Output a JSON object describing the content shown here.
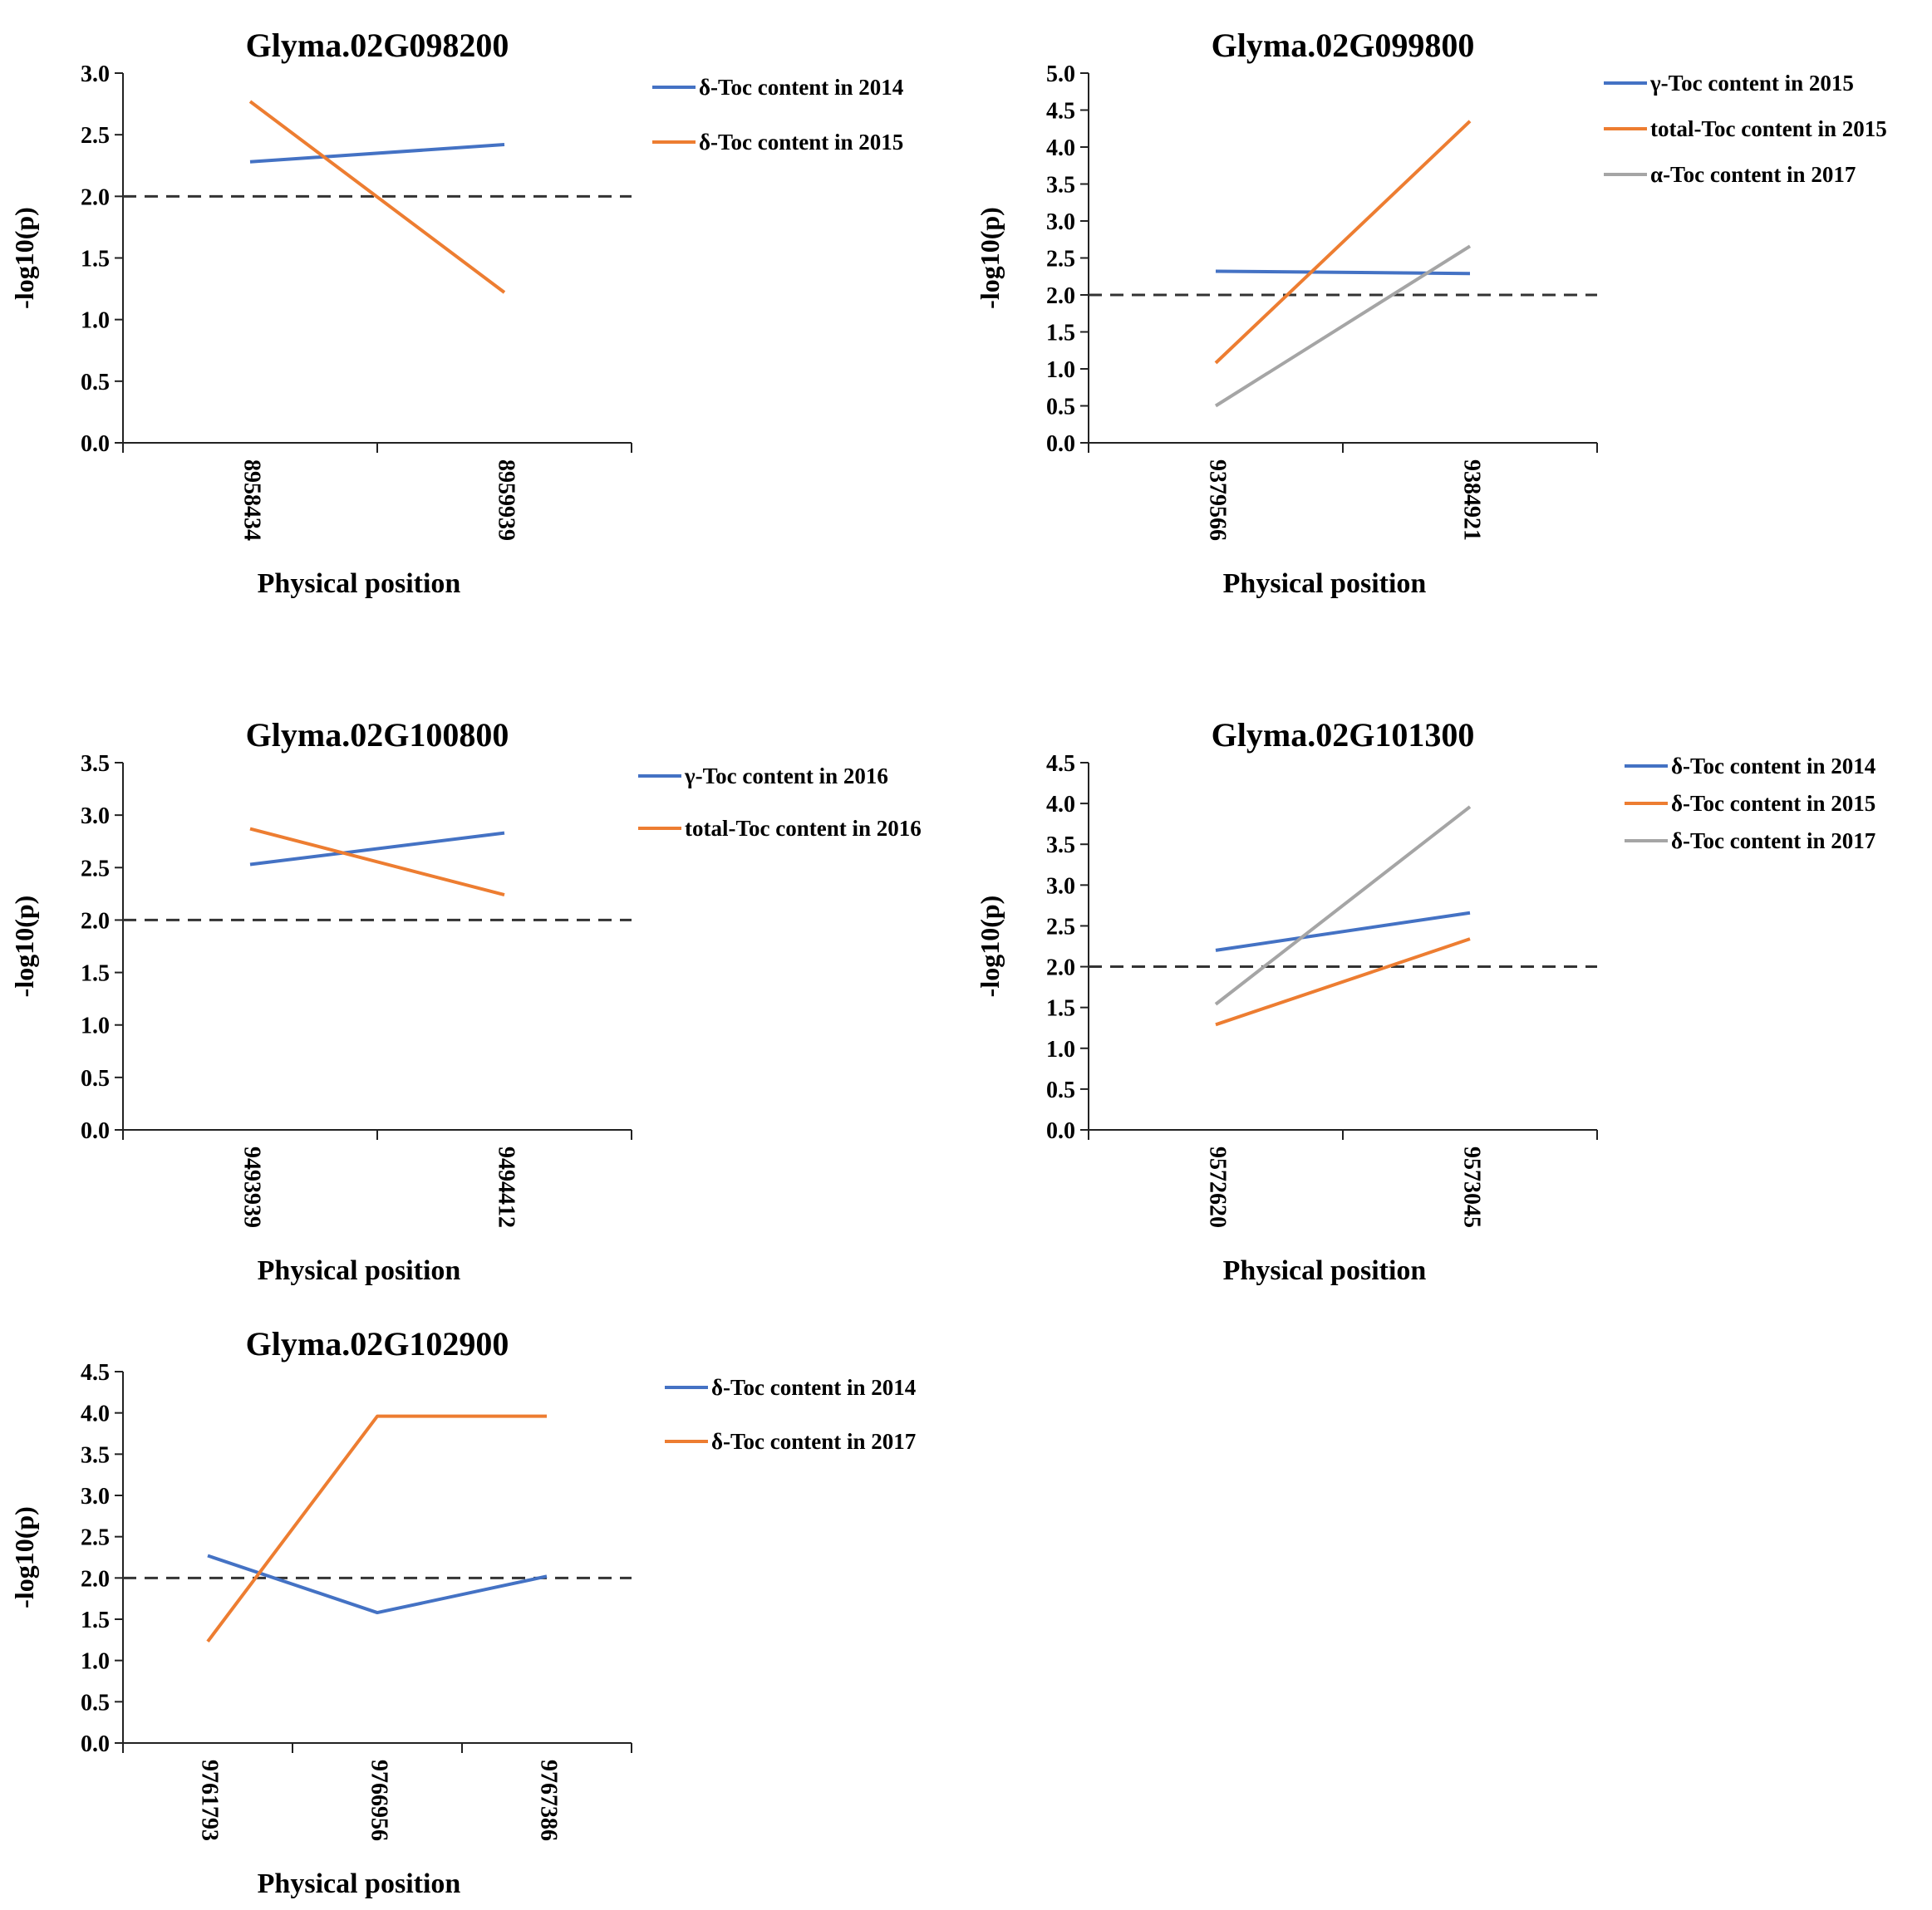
{
  "colors": {
    "blue": "#4472c4",
    "orange": "#ed7d31",
    "gray": "#a5a5a5",
    "threshold": "#333333"
  },
  "chart_data": [
    {
      "type": "line",
      "title": "Glyma.02G098200",
      "xlabel": "Physical position",
      "ylabel": "-log10(p)",
      "categories": [
        "8958434",
        "8959939"
      ],
      "ylim": [
        0,
        3.0
      ],
      "yticks": [
        "0.0",
        "0.5",
        "1.0",
        "1.5",
        "2.0",
        "2.5",
        "3.0"
      ],
      "threshold": 2.0,
      "series": [
        {
          "name": "δ-Toc content in 2014",
          "color": "blue",
          "values": [
            2.28,
            2.42
          ]
        },
        {
          "name": "δ-Toc content in 2015",
          "color": "orange",
          "values": [
            2.77,
            1.22
          ]
        }
      ]
    },
    {
      "type": "line",
      "title": "Glyma.02G099800",
      "xlabel": "Physical position",
      "ylabel": "-log10(p)",
      "categories": [
        "9379566",
        "9384921"
      ],
      "ylim": [
        0,
        5.0
      ],
      "yticks": [
        "0.0",
        "0.5",
        "1.0",
        "1.5",
        "2.0",
        "2.5",
        "3.0",
        "3.5",
        "4.0",
        "4.5",
        "5.0"
      ],
      "threshold": 2.0,
      "series": [
        {
          "name": "γ-Toc content in 2015",
          "color": "blue",
          "values": [
            2.32,
            2.29
          ]
        },
        {
          "name": "total-Toc content in 2015",
          "color": "orange",
          "values": [
            1.08,
            4.35
          ]
        },
        {
          "name": "α-Toc content in 2017",
          "color": "gray",
          "values": [
            0.5,
            2.66
          ]
        }
      ]
    },
    {
      "type": "line",
      "title": "Glyma.02G100800",
      "xlabel": "Physical position",
      "ylabel": "-log10(p)",
      "categories": [
        "9493939",
        "9494412"
      ],
      "ylim": [
        0,
        3.5
      ],
      "yticks": [
        "0.0",
        "0.5",
        "1.0",
        "1.5",
        "2.0",
        "2.5",
        "3.0",
        "3.5"
      ],
      "threshold": 2.0,
      "series": [
        {
          "name": "γ-Toc content in 2016",
          "color": "blue",
          "values": [
            2.53,
            2.83
          ]
        },
        {
          "name": "total-Toc content in 2016",
          "color": "orange",
          "values": [
            2.87,
            2.24
          ]
        }
      ]
    },
    {
      "type": "line",
      "title": "Glyma.02G101300",
      "xlabel": "Physical position",
      "ylabel": "-log10(p)",
      "categories": [
        "9572620",
        "9573045"
      ],
      "ylim": [
        0,
        4.5
      ],
      "yticks": [
        "0.0",
        "0.5",
        "1.0",
        "1.5",
        "2.0",
        "2.5",
        "3.0",
        "3.5",
        "4.0",
        "4.5"
      ],
      "threshold": 2.0,
      "series": [
        {
          "name": "δ-Toc content in 2014",
          "color": "blue",
          "values": [
            2.2,
            2.66
          ]
        },
        {
          "name": "δ-Toc content in 2015",
          "color": "orange",
          "values": [
            1.29,
            2.34
          ]
        },
        {
          "name": "δ-Toc content in 2017",
          "color": "gray",
          "values": [
            1.54,
            3.96
          ]
        }
      ]
    },
    {
      "type": "line",
      "title": "Glyma.02G102900",
      "xlabel": "Physical position",
      "ylabel": "-log10(p)",
      "categories": [
        "9761793",
        "9766956",
        "9767386"
      ],
      "ylim": [
        0,
        4.5
      ],
      "yticks": [
        "0.0",
        "0.5",
        "1.0",
        "1.5",
        "2.0",
        "2.5",
        "3.0",
        "3.5",
        "4.0",
        "4.5"
      ],
      "threshold": 2.0,
      "series": [
        {
          "name": "δ-Toc content in 2014",
          "color": "blue",
          "values": [
            2.27,
            1.58,
            2.02
          ]
        },
        {
          "name": "δ-Toc content in 2017",
          "color": "orange",
          "values": [
            1.23,
            3.96,
            3.96
          ]
        }
      ]
    }
  ]
}
